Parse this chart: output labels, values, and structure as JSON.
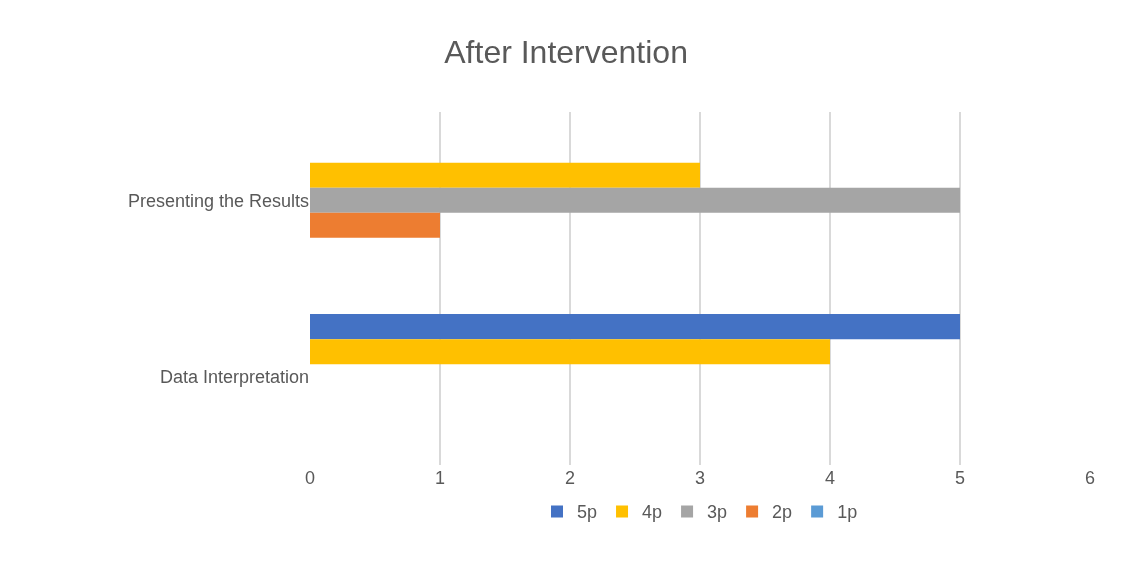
{
  "chart_data": {
    "type": "bar",
    "orientation": "horizontal",
    "title": "After Intervention",
    "categories": [
      "Presenting the Results",
      "Data Interpretation"
    ],
    "series": [
      {
        "name": "5p",
        "color": "#4472c4",
        "values": [
          0,
          5
        ]
      },
      {
        "name": "4p",
        "color": "#ffc000",
        "values": [
          3,
          4
        ]
      },
      {
        "name": "3p",
        "color": "#a5a5a5",
        "values": [
          5,
          0
        ]
      },
      {
        "name": "2p",
        "color": "#ed7d31",
        "values": [
          1,
          0
        ]
      },
      {
        "name": "1p",
        "color": "#5b9bd5",
        "values": [
          0,
          0
        ]
      }
    ],
    "xlim": [
      0,
      6
    ],
    "xticks": [
      0,
      1,
      2,
      3,
      4,
      5,
      6
    ],
    "grid": "x",
    "legend": "bottom"
  }
}
